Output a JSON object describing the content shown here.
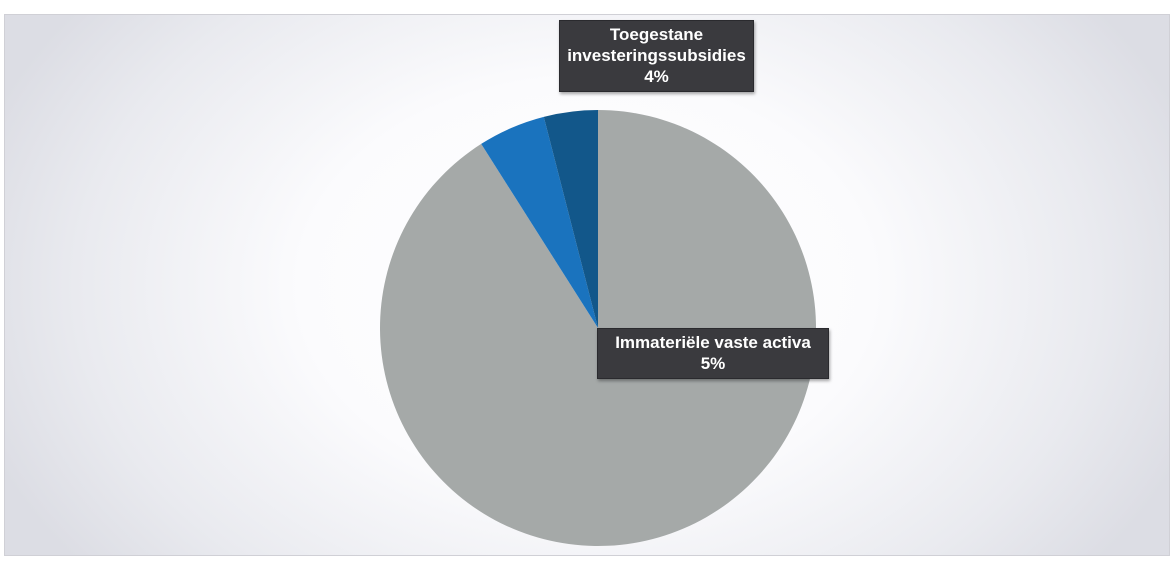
{
  "chart_data": {
    "type": "pie",
    "title": "",
    "slices": [
      {
        "name": "",
        "value": 91,
        "color": "#a5a9a8"
      },
      {
        "name": "Immateriële vaste activa",
        "value": 5,
        "color": "#1a73be"
      },
      {
        "name": "Toegestane investeringssubsidies",
        "value": 4,
        "color": "#12578a"
      }
    ],
    "data_labels": [
      {
        "lines": [
          "Toegestane",
          "investeringssubsidies"
        ],
        "percent": "4%"
      },
      {
        "lines": [
          "Immateriële vaste activa"
        ],
        "percent": "5%"
      }
    ],
    "start_angle": "12 o'clock",
    "direction": "clockwise",
    "legend": "none"
  }
}
